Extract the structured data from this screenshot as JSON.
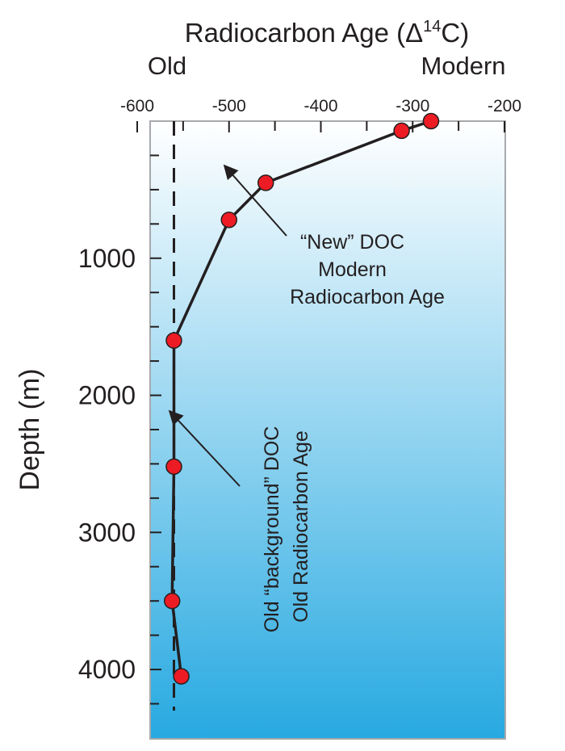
{
  "chart_data": {
    "type": "line",
    "xlabel_main": "Radiocarbon Age (Δ",
    "xlabel_sup": "14",
    "xlabel_tail": "C)",
    "xlabel_left": "Old",
    "xlabel_right": "Modern",
    "ylabel": "Depth (m)",
    "xlim": [
      -600,
      -200
    ],
    "ylim": [
      0,
      4300
    ],
    "x_ticks": [
      -600,
      -500,
      -400,
      -300,
      -200
    ],
    "y_ticks": [
      1000,
      2000,
      3000,
      4000
    ],
    "x_minor_ticks": [
      -550,
      -450,
      -350,
      -250
    ],
    "y_minor_ticks": [
      250,
      500,
      750,
      1250,
      1500,
      1750,
      2250,
      2500,
      2750,
      3250,
      3500,
      3750,
      4250
    ],
    "background_vertical_line_x": -560,
    "series": [
      {
        "x": [
          -280,
          -312,
          -460,
          -500,
          -560,
          -560,
          -562,
          -552
        ],
        "y": [
          0,
          70,
          450,
          720,
          1600,
          2520,
          3500,
          4050
        ]
      }
    ],
    "annotations": [
      {
        "lines": [
          "“New” DOC",
          "Modern",
          "Radiocarbon Age"
        ]
      },
      {
        "lines": [
          "Old “background” DOC",
          "Old Radiocarbon Age"
        ]
      }
    ],
    "colors": {
      "marker": "#ed1c24",
      "line": "#231f20",
      "gradient_top": "#ffffff",
      "gradient_bottom": "#27a9e1",
      "frame": "#a7a9ac"
    }
  }
}
